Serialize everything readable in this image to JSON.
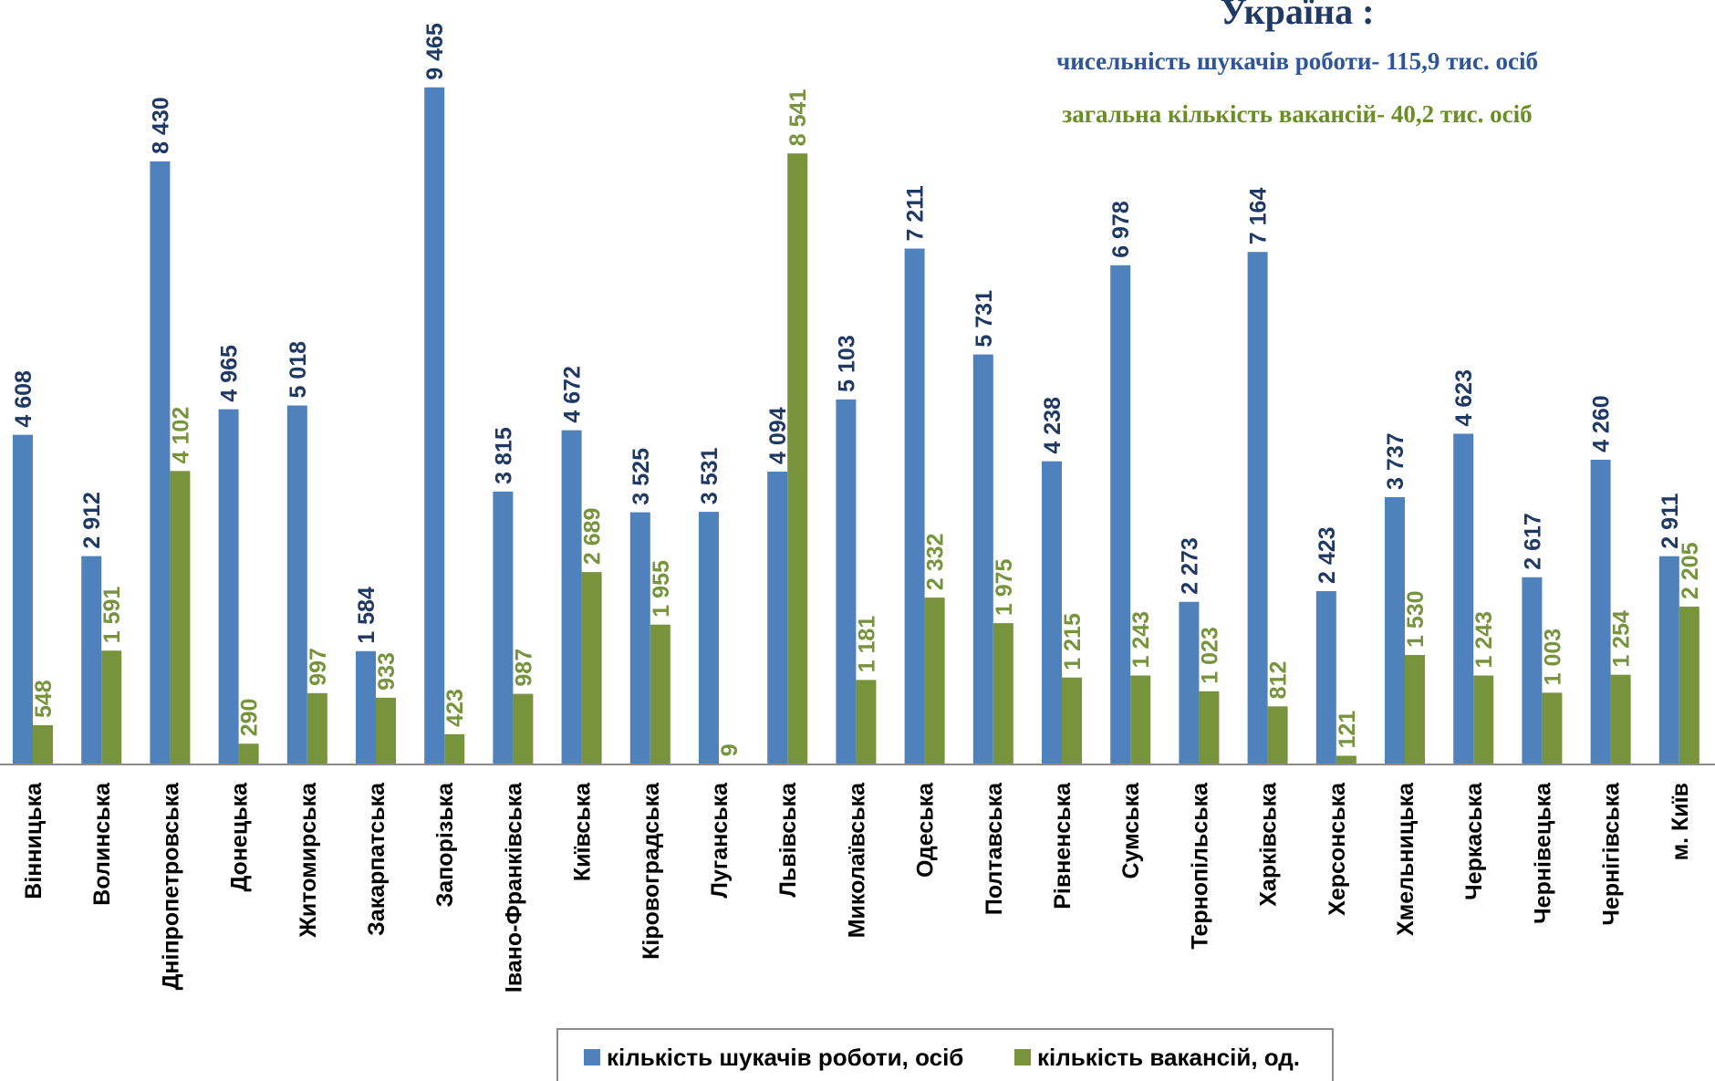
{
  "chart_data": {
    "type": "bar",
    "title": "Україна :",
    "subtitle_lines": [
      "чисельність шукачів роботи- 115,9 тис. осіб",
      "загальна кількість вакансій- 40,2 тис. осіб"
    ],
    "categories": [
      "Вінницька",
      "Волинська",
      "Дніпропетровська",
      "Донецька",
      "Житомирська",
      "Закарпатська",
      "Запорізька",
      "Івано-Франківська",
      "Київська",
      "Кіровоградська",
      "Луганська",
      "Львівська",
      "Миколаївська",
      "Одеська",
      "Полтавська",
      "Рівненська",
      "Сумська",
      "Тернопільська",
      "Харківська",
      "Херсонська",
      "Хмельницька",
      "Черкаська",
      "Чернівецька",
      "Чернігівська",
      "м. Київ"
    ],
    "series": [
      {
        "name": "кількість шукачів роботи, осіб",
        "color": "#4f81bd",
        "values": [
          4608,
          2912,
          8430,
          4965,
          5018,
          1584,
          9465,
          3815,
          4672,
          3525,
          3531,
          4094,
          5103,
          7211,
          5731,
          4238,
          6978,
          2273,
          7164,
          2423,
          3737,
          4623,
          2617,
          4260,
          2911
        ],
        "labels": [
          "4 608",
          "2 912",
          "8 430",
          "4 965",
          "5 018",
          "1 584",
          "9 465",
          "3 815",
          "4 672",
          "3 525",
          "3 531",
          "4 094",
          "5 103",
          "7 211",
          "5 731",
          "4 238",
          "6 978",
          "2 273",
          "7 164",
          "2 423",
          "3 737",
          "4 623",
          "2 617",
          "4 260",
          "2 911"
        ]
      },
      {
        "name": "кількість вакансій, од.",
        "color": "#77933c",
        "values": [
          548,
          1591,
          4102,
          290,
          997,
          933,
          423,
          987,
          2689,
          1955,
          9,
          8541,
          1181,
          2332,
          1975,
          1215,
          1243,
          1023,
          812,
          121,
          1530,
          1243,
          1003,
          1254,
          2205
        ],
        "labels": [
          "548",
          "1 591",
          "4 102",
          "290",
          "997",
          "933",
          "423",
          "987",
          "2 689",
          "1 955",
          "9",
          "8 541",
          "1 181",
          "2 332",
          "1 975",
          "1 215",
          "1 243",
          "1 023",
          "812",
          "121",
          "1 530",
          "1 243",
          "1 003",
          "1 254",
          "2 205"
        ]
      }
    ],
    "ylim": [
      0,
      9500
    ],
    "grid": false,
    "legend_position": "bottom"
  }
}
